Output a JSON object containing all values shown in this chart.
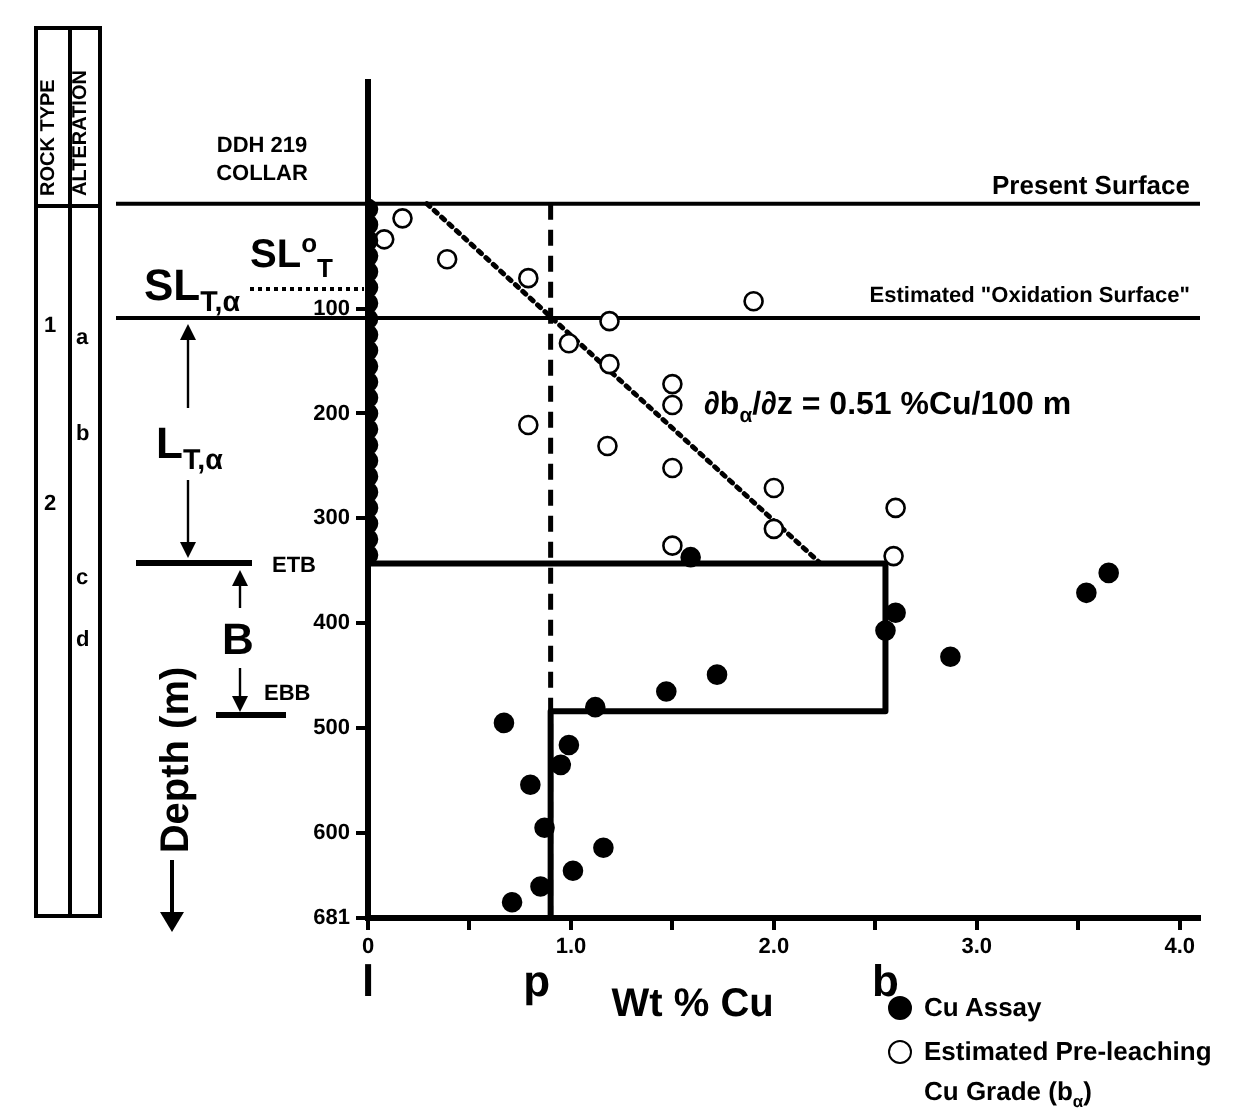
{
  "chart_data": {
    "type": "scatter",
    "xlabel": "Wt % Cu",
    "ylabel": "Depth (m)",
    "xlim": [
      0,
      4.1
    ],
    "xticks": [
      0,
      {
        "value": 0.5,
        "label": null
      },
      {
        "value": 1,
        "label": "1.0"
      },
      {
        "value": 1.5,
        "label": null
      },
      {
        "value": 2,
        "label": "2.0"
      },
      {
        "value": 2.5,
        "label": null
      },
      {
        "value": 3,
        "label": "3.0"
      },
      {
        "value": 3.5,
        "label": null
      },
      {
        "value": 4,
        "label": "4.0"
      }
    ],
    "ylim": [
      681,
      -116
    ],
    "yticks": [
      100,
      200,
      300,
      400,
      500,
      600,
      681
    ],
    "grid": false,
    "legend": "bottom right",
    "marker": "circle",
    "series": [
      {
        "name": "Cu Assay",
        "type": "scatter",
        "color": "#000000",
        "x": [
          0,
          0,
          0,
          0,
          0,
          0,
          0,
          0,
          0,
          0,
          0,
          0,
          0,
          0,
          0,
          0,
          0,
          0,
          0,
          0,
          0,
          0,
          0,
          1.59,
          3.65,
          3.54,
          2.6,
          2.55,
          2.87,
          1.72,
          1.47,
          1.12,
          0.67,
          0.99,
          0.95,
          0.8,
          0.87,
          1.16,
          1.01,
          0.85,
          0.71
        ],
        "values": [
          5,
          20,
          35,
          50,
          65,
          80,
          95,
          110,
          125,
          140,
          155,
          170,
          185,
          200,
          215,
          230,
          245,
          260,
          275,
          290,
          305,
          320,
          335,
          337,
          352,
          371,
          390,
          407,
          432,
          449,
          465,
          480,
          495,
          516,
          535,
          554,
          595,
          614,
          636,
          651,
          666
        ]
      },
      {
        "name": "Estimated Pre-leaching Cu Grade (b$_{α}$)",
        "type": "scatter",
        "color": "#ffffff",
        "x": [
          0.17,
          0.08,
          0.39,
          0.79,
          1.9,
          1.19,
          0.99,
          1.19,
          1.5,
          1.5,
          0.79,
          1.18,
          1.5,
          2.0,
          2.6,
          2.0,
          1.5,
          2.59
        ],
        "values": [
          14,
          34,
          53,
          71,
          93,
          112,
          133,
          153,
          172,
          192,
          211,
          231,
          252,
          271,
          290,
          310,
          326,
          336
        ]
      },
      {
        "type": "line",
        "color": "#000000",
        "marker": "none",
        "x": [
          0,
          2.55,
          2.55,
          0.9,
          0.9
        ],
        "values": [
          343,
          343,
          484,
          484,
          681
        ]
      },
      {
        "type": "line",
        "color": "#000000",
        "marker": "none",
        "line_style": "dotted",
        "x": [
          0.29,
          2.23
        ],
        "values": [
          0,
          343
        ]
      }
    ],
    "ref_lines": [
      {
        "axis": "y",
        "value": 0,
        "label": "Present Surface"
      },
      {
        "axis": "y",
        "value": 109,
        "label": "Estimated \"Oxidation Surface\""
      },
      {
        "axis": "x",
        "value": 0.9,
        "line_style": "dashed"
      }
    ],
    "annotations": [
      "∂b$_{α}$/∂z = 0.51 %Cu/100 m",
      "l",
      "p",
      "b",
      "DDH 219 COLLAR",
      "SL$^{o}$$_{T}$",
      "SL$_{T,α}$",
      "L$_{T,α}$",
      "B",
      "ETB",
      "EBB",
      "ROCK TYPE",
      "ALTERATION",
      "1",
      "2",
      "a",
      "b",
      "c",
      "d"
    ]
  }
}
